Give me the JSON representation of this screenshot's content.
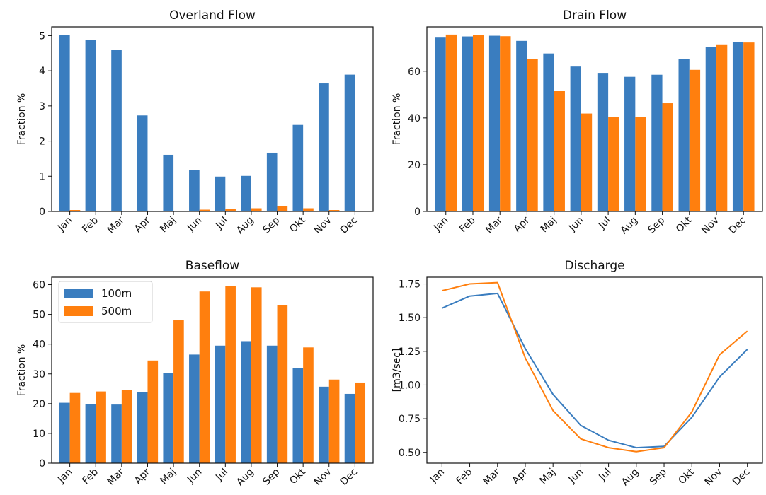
{
  "chart_data": [
    {
      "type": "bar",
      "title": "Overland Flow",
      "ylabel": "Fraction %",
      "xlabel": "",
      "categories": [
        "Jan",
        "Feb",
        "Mar",
        "Apr",
        "Maj",
        "Jun",
        "Jul",
        "Aug",
        "Sep",
        "Okt",
        "Nov",
        "Dec"
      ],
      "ylim": [
        0,
        5.25
      ],
      "yticks": [
        "0",
        "1",
        "2",
        "3",
        "4",
        "5"
      ],
      "legend": false,
      "series": [
        {
          "name": "100m",
          "color": "#3a7dbf",
          "values": [
            5.02,
            4.88,
            4.6,
            2.73,
            1.61,
            1.17,
            0.99,
            1.01,
            1.67,
            2.46,
            3.64,
            3.89
          ]
        },
        {
          "name": "500m",
          "color": "#ff7f0e",
          "values": [
            0.04,
            0.02,
            0.02,
            0.01,
            0.01,
            0.05,
            0.07,
            0.09,
            0.16,
            0.09,
            0.04,
            0.02
          ]
        }
      ]
    },
    {
      "type": "bar",
      "title": "Drain Flow",
      "ylabel": "Fraction %",
      "xlabel": "",
      "categories": [
        "Jan",
        "Feb",
        "Mar",
        "Apr",
        "Maj",
        "Jun",
        "Jul",
        "Aug",
        "Sep",
        "Okt",
        "Nov",
        "Dec"
      ],
      "ylim": [
        0,
        79
      ],
      "yticks": [
        "0",
        "20",
        "40",
        "60"
      ],
      "legend": false,
      "series": [
        {
          "name": "100m",
          "color": "#3a7dbf",
          "values": [
            74.4,
            74.9,
            75.2,
            73.0,
            67.6,
            62.0,
            59.3,
            57.6,
            58.5,
            65.2,
            70.4,
            72.4
          ]
        },
        {
          "name": "500m",
          "color": "#ff7f0e",
          "values": [
            75.7,
            75.4,
            75.0,
            65.1,
            51.6,
            41.9,
            40.3,
            40.4,
            46.3,
            60.6,
            71.5,
            72.3
          ]
        }
      ]
    },
    {
      "type": "bar",
      "title": "Baseflow",
      "ylabel": "Fraction %",
      "xlabel": "",
      "categories": [
        "Jan",
        "Feb",
        "Mar",
        "Apr",
        "Maj",
        "Jun",
        "Jul",
        "Aug",
        "Sep",
        "Okt",
        "Nov",
        "Dec"
      ],
      "ylim": [
        0,
        62.5
      ],
      "yticks": [
        "0",
        "10",
        "20",
        "30",
        "40",
        "50",
        "60"
      ],
      "legend": true,
      "legend_position": "top-left",
      "series": [
        {
          "name": "100m",
          "color": "#3a7dbf",
          "values": [
            20.3,
            19.8,
            19.7,
            24.0,
            30.4,
            36.5,
            39.5,
            41.0,
            39.5,
            32.0,
            25.7,
            23.3
          ]
        },
        {
          "name": "500m",
          "color": "#ff7f0e",
          "values": [
            23.6,
            24.1,
            24.5,
            34.5,
            48.0,
            57.7,
            59.5,
            59.1,
            53.2,
            38.9,
            28.1,
            27.1
          ]
        }
      ]
    },
    {
      "type": "line",
      "title": "Discharge",
      "ylabel": "[m3/sec]",
      "xlabel": "",
      "categories": [
        "Jan",
        "Feb",
        "Mar",
        "Apr",
        "Maj",
        "Jun",
        "Jul",
        "Aug",
        "Sep",
        "Okt",
        "Nov",
        "Dec"
      ],
      "ylim": [
        0.42,
        1.8
      ],
      "yticks": [
        "0.50",
        "0.75",
        "1.00",
        "1.25",
        "1.50",
        "1.75"
      ],
      "legend": false,
      "series": [
        {
          "name": "100m",
          "color": "#3a7dbf",
          "values": [
            1.57,
            1.66,
            1.68,
            1.27,
            0.93,
            0.7,
            0.59,
            0.535,
            0.545,
            0.76,
            1.06,
            1.265
          ]
        },
        {
          "name": "500m",
          "color": "#ff7f0e",
          "values": [
            1.7,
            1.75,
            1.76,
            1.2,
            0.81,
            0.6,
            0.535,
            0.505,
            0.535,
            0.8,
            1.225,
            1.4
          ]
        }
      ]
    }
  ]
}
